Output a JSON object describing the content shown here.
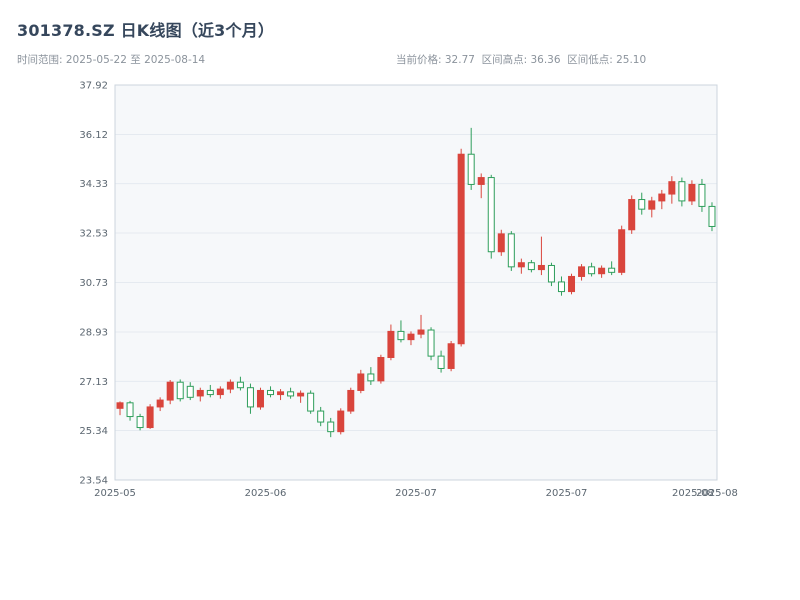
{
  "header": {
    "title": "301378.SZ 日K线图（近3个月）",
    "subtitle_left": "时间范围: 2025-05-22 至 2025-08-14",
    "subtitle_right": "当前价格: 32.77  区间高点: 36.36  区间低点: 25.10"
  },
  "chart_data": {
    "type": "candlestick",
    "title": "301378.SZ 日K线图（近3个月）",
    "symbol": "301378.SZ",
    "date_range": {
      "start": "2025-05-22",
      "end": "2025-08-14"
    },
    "current_price": 32.77,
    "range_high": 36.36,
    "range_low": 25.1,
    "grid": true,
    "y_axis": {
      "min": 23.54,
      "max": 37.92,
      "ticks": [
        37.92,
        36.12,
        34.33,
        32.53,
        30.73,
        28.93,
        27.13,
        25.34,
        23.54
      ]
    },
    "x_axis": {
      "ticks": [
        {
          "pos": 0.0,
          "label": "2025-05"
        },
        {
          "pos": 0.25,
          "label": "2025-06"
        },
        {
          "pos": 0.5,
          "label": "2025-07"
        },
        {
          "pos": 0.75,
          "label": "2025-07"
        },
        {
          "pos": 0.96,
          "label": "2025-08"
        },
        {
          "pos": 1.0,
          "label": "2025-08"
        }
      ]
    },
    "colors": {
      "up": "#d9453c",
      "down": "#2e9e5b",
      "grid": "#e5eaf0",
      "plot_bg": "#f6f8fa",
      "border": "#ccd5de",
      "axis_text": "#5b6670"
    },
    "dates": [
      "2025-05-22",
      "2025-05-23",
      "2025-05-26",
      "2025-05-27",
      "2025-05-28",
      "2025-05-29",
      "2025-05-30",
      "2025-06-03",
      "2025-06-04",
      "2025-06-05",
      "2025-06-06",
      "2025-06-09",
      "2025-06-10",
      "2025-06-11",
      "2025-06-12",
      "2025-06-13",
      "2025-06-16",
      "2025-06-17",
      "2025-06-18",
      "2025-06-19",
      "2025-06-20",
      "2025-06-23",
      "2025-06-24",
      "2025-06-25",
      "2025-06-26",
      "2025-06-27",
      "2025-06-30",
      "2025-07-01",
      "2025-07-02",
      "2025-07-03",
      "2025-07-04",
      "2025-07-07",
      "2025-07-08",
      "2025-07-09",
      "2025-07-10",
      "2025-07-11",
      "2025-07-14",
      "2025-07-15",
      "2025-07-16",
      "2025-07-17",
      "2025-07-18",
      "2025-07-21",
      "2025-07-22",
      "2025-07-23",
      "2025-07-24",
      "2025-07-25",
      "2025-07-28",
      "2025-07-29",
      "2025-07-30",
      "2025-07-31",
      "2025-08-01",
      "2025-08-04",
      "2025-08-05",
      "2025-08-06",
      "2025-08-07",
      "2025-08-08",
      "2025-08-11",
      "2025-08-12",
      "2025-08-13",
      "2025-08-14"
    ],
    "ohlc": [
      [
        26.15,
        26.4,
        25.9,
        26.35
      ],
      [
        26.35,
        26.42,
        25.7,
        25.85
      ],
      [
        25.85,
        25.95,
        25.35,
        25.45
      ],
      [
        25.45,
        26.3,
        25.4,
        26.2
      ],
      [
        26.2,
        26.55,
        26.05,
        26.45
      ],
      [
        26.45,
        27.18,
        26.3,
        27.1
      ],
      [
        27.1,
        27.2,
        26.4,
        26.5
      ],
      [
        26.95,
        27.1,
        26.45,
        26.55
      ],
      [
        26.6,
        26.9,
        26.4,
        26.8
      ],
      [
        26.8,
        27.0,
        26.55,
        26.65
      ],
      [
        26.65,
        26.95,
        26.5,
        26.85
      ],
      [
        26.85,
        27.2,
        26.7,
        27.1
      ],
      [
        27.1,
        27.3,
        26.8,
        26.9
      ],
      [
        26.9,
        27.05,
        25.95,
        26.2
      ],
      [
        26.2,
        26.9,
        26.1,
        26.8
      ],
      [
        26.8,
        26.95,
        26.55,
        26.65
      ],
      [
        26.65,
        26.85,
        26.45,
        26.75
      ],
      [
        26.75,
        26.9,
        26.5,
        26.6
      ],
      [
        26.6,
        26.8,
        26.35,
        26.7
      ],
      [
        26.7,
        26.8,
        25.95,
        26.05
      ],
      [
        26.05,
        26.2,
        25.5,
        25.65
      ],
      [
        25.65,
        25.8,
        25.1,
        25.3
      ],
      [
        25.3,
        26.15,
        25.2,
        26.05
      ],
      [
        26.05,
        26.9,
        25.95,
        26.8
      ],
      [
        26.8,
        27.55,
        26.7,
        27.4
      ],
      [
        27.4,
        27.65,
        27.0,
        27.15
      ],
      [
        27.15,
        28.1,
        27.05,
        28.0
      ],
      [
        28.0,
        29.2,
        27.9,
        28.95
      ],
      [
        28.95,
        29.35,
        28.55,
        28.65
      ],
      [
        28.65,
        28.95,
        28.45,
        28.85
      ],
      [
        28.85,
        29.55,
        28.7,
        29.0
      ],
      [
        29.0,
        29.1,
        27.9,
        28.05
      ],
      [
        28.05,
        28.25,
        27.45,
        27.6
      ],
      [
        27.6,
        28.6,
        27.5,
        28.5
      ],
      [
        28.5,
        35.6,
        28.4,
        35.4
      ],
      [
        35.4,
        36.36,
        34.1,
        34.3
      ],
      [
        34.3,
        34.7,
        33.8,
        34.55
      ],
      [
        34.55,
        34.65,
        31.6,
        31.85
      ],
      [
        31.85,
        32.65,
        31.7,
        32.5
      ],
      [
        32.5,
        32.6,
        31.15,
        31.3
      ],
      [
        31.3,
        31.6,
        31.05,
        31.45
      ],
      [
        31.45,
        31.55,
        31.1,
        31.2
      ],
      [
        31.2,
        32.4,
        31.0,
        31.35
      ],
      [
        31.35,
        31.45,
        30.6,
        30.75
      ],
      [
        30.75,
        30.95,
        30.25,
        30.4
      ],
      [
        30.4,
        31.05,
        30.3,
        30.95
      ],
      [
        30.95,
        31.4,
        30.8,
        31.3
      ],
      [
        31.3,
        31.45,
        30.95,
        31.05
      ],
      [
        31.05,
        31.35,
        30.9,
        31.25
      ],
      [
        31.25,
        31.5,
        31.0,
        31.1
      ],
      [
        31.1,
        32.8,
        31.0,
        32.65
      ],
      [
        32.65,
        33.9,
        32.5,
        33.75
      ],
      [
        33.75,
        34.0,
        33.2,
        33.4
      ],
      [
        33.4,
        33.85,
        33.1,
        33.7
      ],
      [
        33.7,
        34.1,
        33.4,
        33.95
      ],
      [
        33.95,
        34.6,
        33.6,
        34.4
      ],
      [
        34.4,
        34.55,
        33.5,
        33.7
      ],
      [
        33.7,
        34.45,
        33.55,
        34.3
      ],
      [
        34.3,
        34.5,
        33.3,
        33.5
      ],
      [
        33.5,
        33.65,
        32.6,
        32.77
      ]
    ]
  }
}
